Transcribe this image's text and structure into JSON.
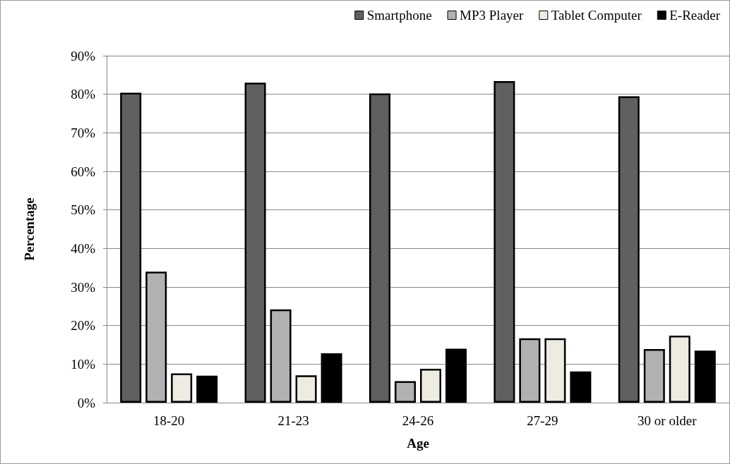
{
  "chart_data": {
    "type": "bar",
    "xlabel": "Age",
    "ylabel": "Percentage",
    "categories": [
      "18-20",
      "21-23",
      "24-26",
      "27-29",
      "30 or older"
    ],
    "series": [
      {
        "name": "Smartphone",
        "color": "#606060",
        "values": [
          80.4,
          83,
          80.2,
          83.4,
          79.5
        ]
      },
      {
        "name": "MP3 Player",
        "color": "#b2b2b2",
        "values": [
          34,
          24.2,
          5.6,
          16.7,
          13.9
        ]
      },
      {
        "name": "Tablet Computer",
        "color": "#eeece1",
        "values": [
          7.6,
          7.1,
          8.8,
          16.7,
          17.4
        ]
      },
      {
        "name": "E-Reader",
        "color": "#000000",
        "values": [
          7.0,
          12.8,
          14.0,
          8.1,
          13.5
        ]
      }
    ],
    "ylim": [
      0,
      90
    ],
    "yticks": [
      {
        "value": 0,
        "label": "0%"
      },
      {
        "value": 10,
        "label": "10%"
      },
      {
        "value": 20,
        "label": "20%"
      },
      {
        "value": 30,
        "label": "30%"
      },
      {
        "value": 40,
        "label": "40%"
      },
      {
        "value": 50,
        "label": "50%"
      },
      {
        "value": 60,
        "label": "60%"
      },
      {
        "value": 70,
        "label": "70%"
      },
      {
        "value": 80,
        "label": "80%"
      },
      {
        "value": 90,
        "label": "90%"
      }
    ],
    "grid": "y",
    "legend": "top right"
  }
}
